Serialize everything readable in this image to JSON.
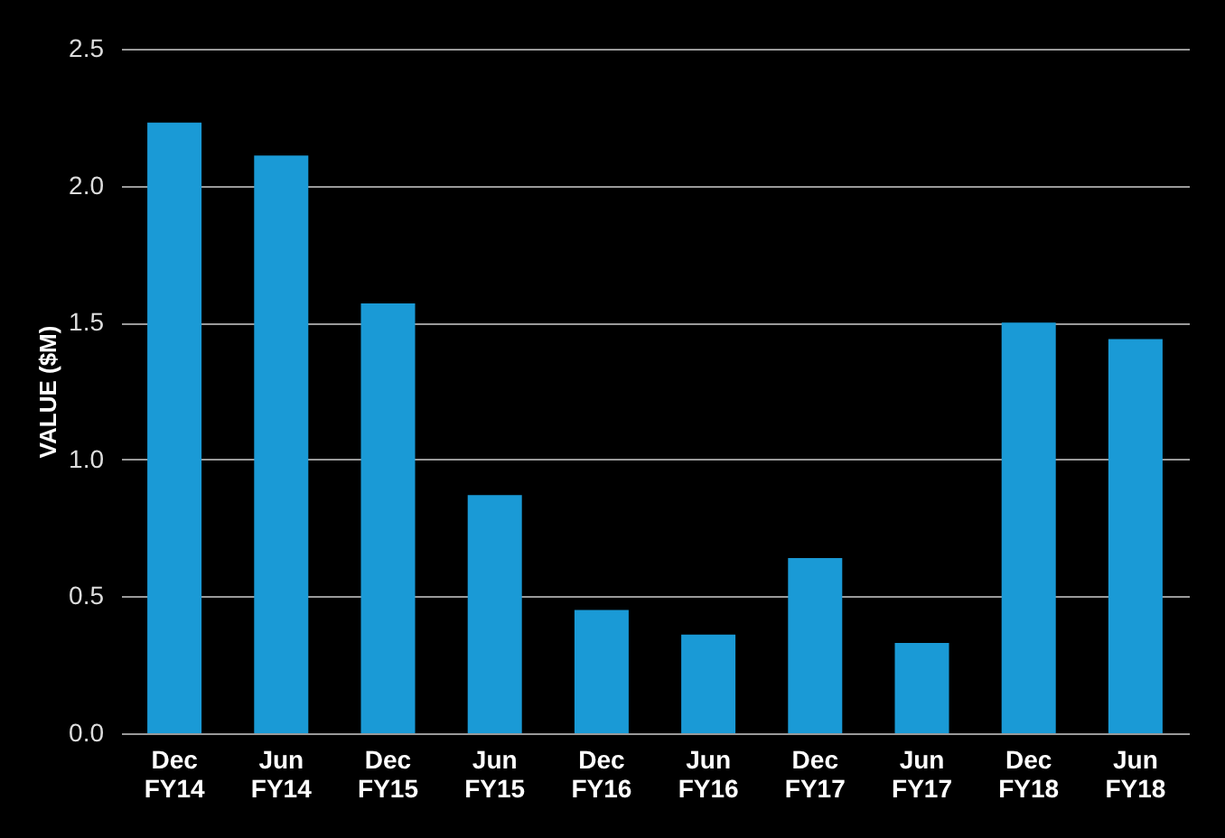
{
  "chart_data": {
    "type": "bar",
    "ylabel": "VALUE ($M)",
    "categories": [
      "Dec FY14",
      "Jun FY14",
      "Dec FY15",
      "Jun FY15",
      "Dec FY16",
      "Jun FY16",
      "Dec FY17",
      "Jun FY17",
      "Dec FY18",
      "Jun FY18"
    ],
    "values": [
      2.23,
      2.11,
      1.57,
      0.87,
      0.45,
      0.36,
      0.64,
      0.33,
      1.5,
      1.44
    ],
    "color": "#1a9ad6",
    "ylim": [
      0,
      2.5
    ],
    "yticks": [
      {
        "value": 0,
        "label": "0.0"
      },
      0.5,
      {
        "value": 1,
        "label": "1.0"
      },
      1.5,
      {
        "value": 2,
        "label": "2.0"
      },
      2.5
    ],
    "grid": "y"
  }
}
